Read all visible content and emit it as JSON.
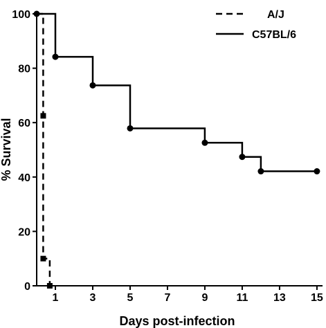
{
  "chart_data": {
    "type": "line",
    "step": true,
    "xlabel": "Days post-infection",
    "ylabel": "% Survival",
    "xlim": [
      0,
      15.3
    ],
    "ylim": [
      0,
      100
    ],
    "x_ticks": [
      1,
      3,
      5,
      7,
      9,
      11,
      13,
      15
    ],
    "y_ticks": [
      0,
      20,
      40,
      60,
      80,
      100
    ],
    "grid": false,
    "legend_position": "top-right",
    "series": [
      {
        "name": "A/J",
        "style": "dashed",
        "color": "#000000",
        "marker": "square",
        "steps": [
          [
            0,
            100
          ],
          [
            0.35,
            100
          ],
          [
            0.35,
            10
          ],
          [
            0.7,
            10
          ],
          [
            0.7,
            0
          ]
        ],
        "markers": [
          [
            0.35,
            62.5
          ],
          [
            0.35,
            10
          ],
          [
            0.7,
            0
          ]
        ]
      },
      {
        "name": "C57BL/6",
        "style": "solid",
        "color": "#000000",
        "marker": "circle",
        "steps": [
          [
            0,
            100
          ],
          [
            1,
            100
          ],
          [
            1,
            84.2
          ],
          [
            3,
            84.2
          ],
          [
            3,
            73.7
          ],
          [
            5,
            73.7
          ],
          [
            5,
            57.9
          ],
          [
            9,
            57.9
          ],
          [
            9,
            52.6
          ],
          [
            11,
            52.6
          ],
          [
            11,
            47.4
          ],
          [
            12,
            47.4
          ],
          [
            12,
            42.1
          ],
          [
            15,
            42.1
          ]
        ],
        "markers": [
          [
            0,
            100
          ],
          [
            1,
            84.2
          ],
          [
            3,
            73.7
          ],
          [
            5,
            57.9
          ],
          [
            9,
            52.6
          ],
          [
            11,
            47.4
          ],
          [
            12,
            42.1
          ],
          [
            15,
            42.1
          ]
        ]
      }
    ]
  }
}
